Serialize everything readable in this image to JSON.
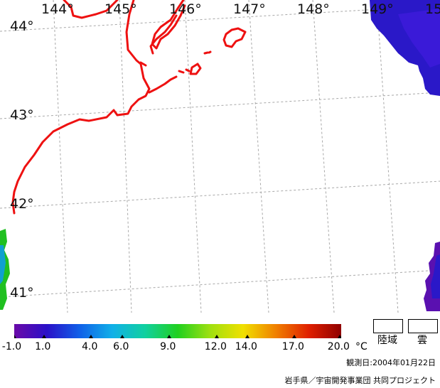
{
  "map": {
    "lon_labels": [
      "144°",
      "145°",
      "146°",
      "147°",
      "148°",
      "149°",
      "15"
    ],
    "lat_labels": [
      "44°",
      "43°",
      "42°",
      "41°"
    ],
    "colors": {
      "coastline": "#ee1111",
      "grid": "#a8a8a8",
      "sst_cold_deep": "#2a18c8",
      "sst_warm": "#20c020"
    }
  },
  "colorbar": {
    "stops": [
      "#6a0aa8",
      "#2a10c8",
      "#1060e8",
      "#10b0e8",
      "#10d0a0",
      "#20d020",
      "#a0e010",
      "#f0e000",
      "#f08000",
      "#e02000",
      "#900000"
    ],
    "tick_labels": [
      "-1.0",
      "1.0",
      "4.0",
      "6.0",
      "9.0",
      "12.0",
      "14.0",
      "17.0",
      "20.0"
    ],
    "unit": "°C"
  },
  "legend": {
    "land_label": "陸域",
    "cloud_label": "雲"
  },
  "footer": {
    "observation_date": "観測日:2004年01月22日",
    "credit": "岩手県／宇宙開発事業団 共同プロジェクト"
  }
}
